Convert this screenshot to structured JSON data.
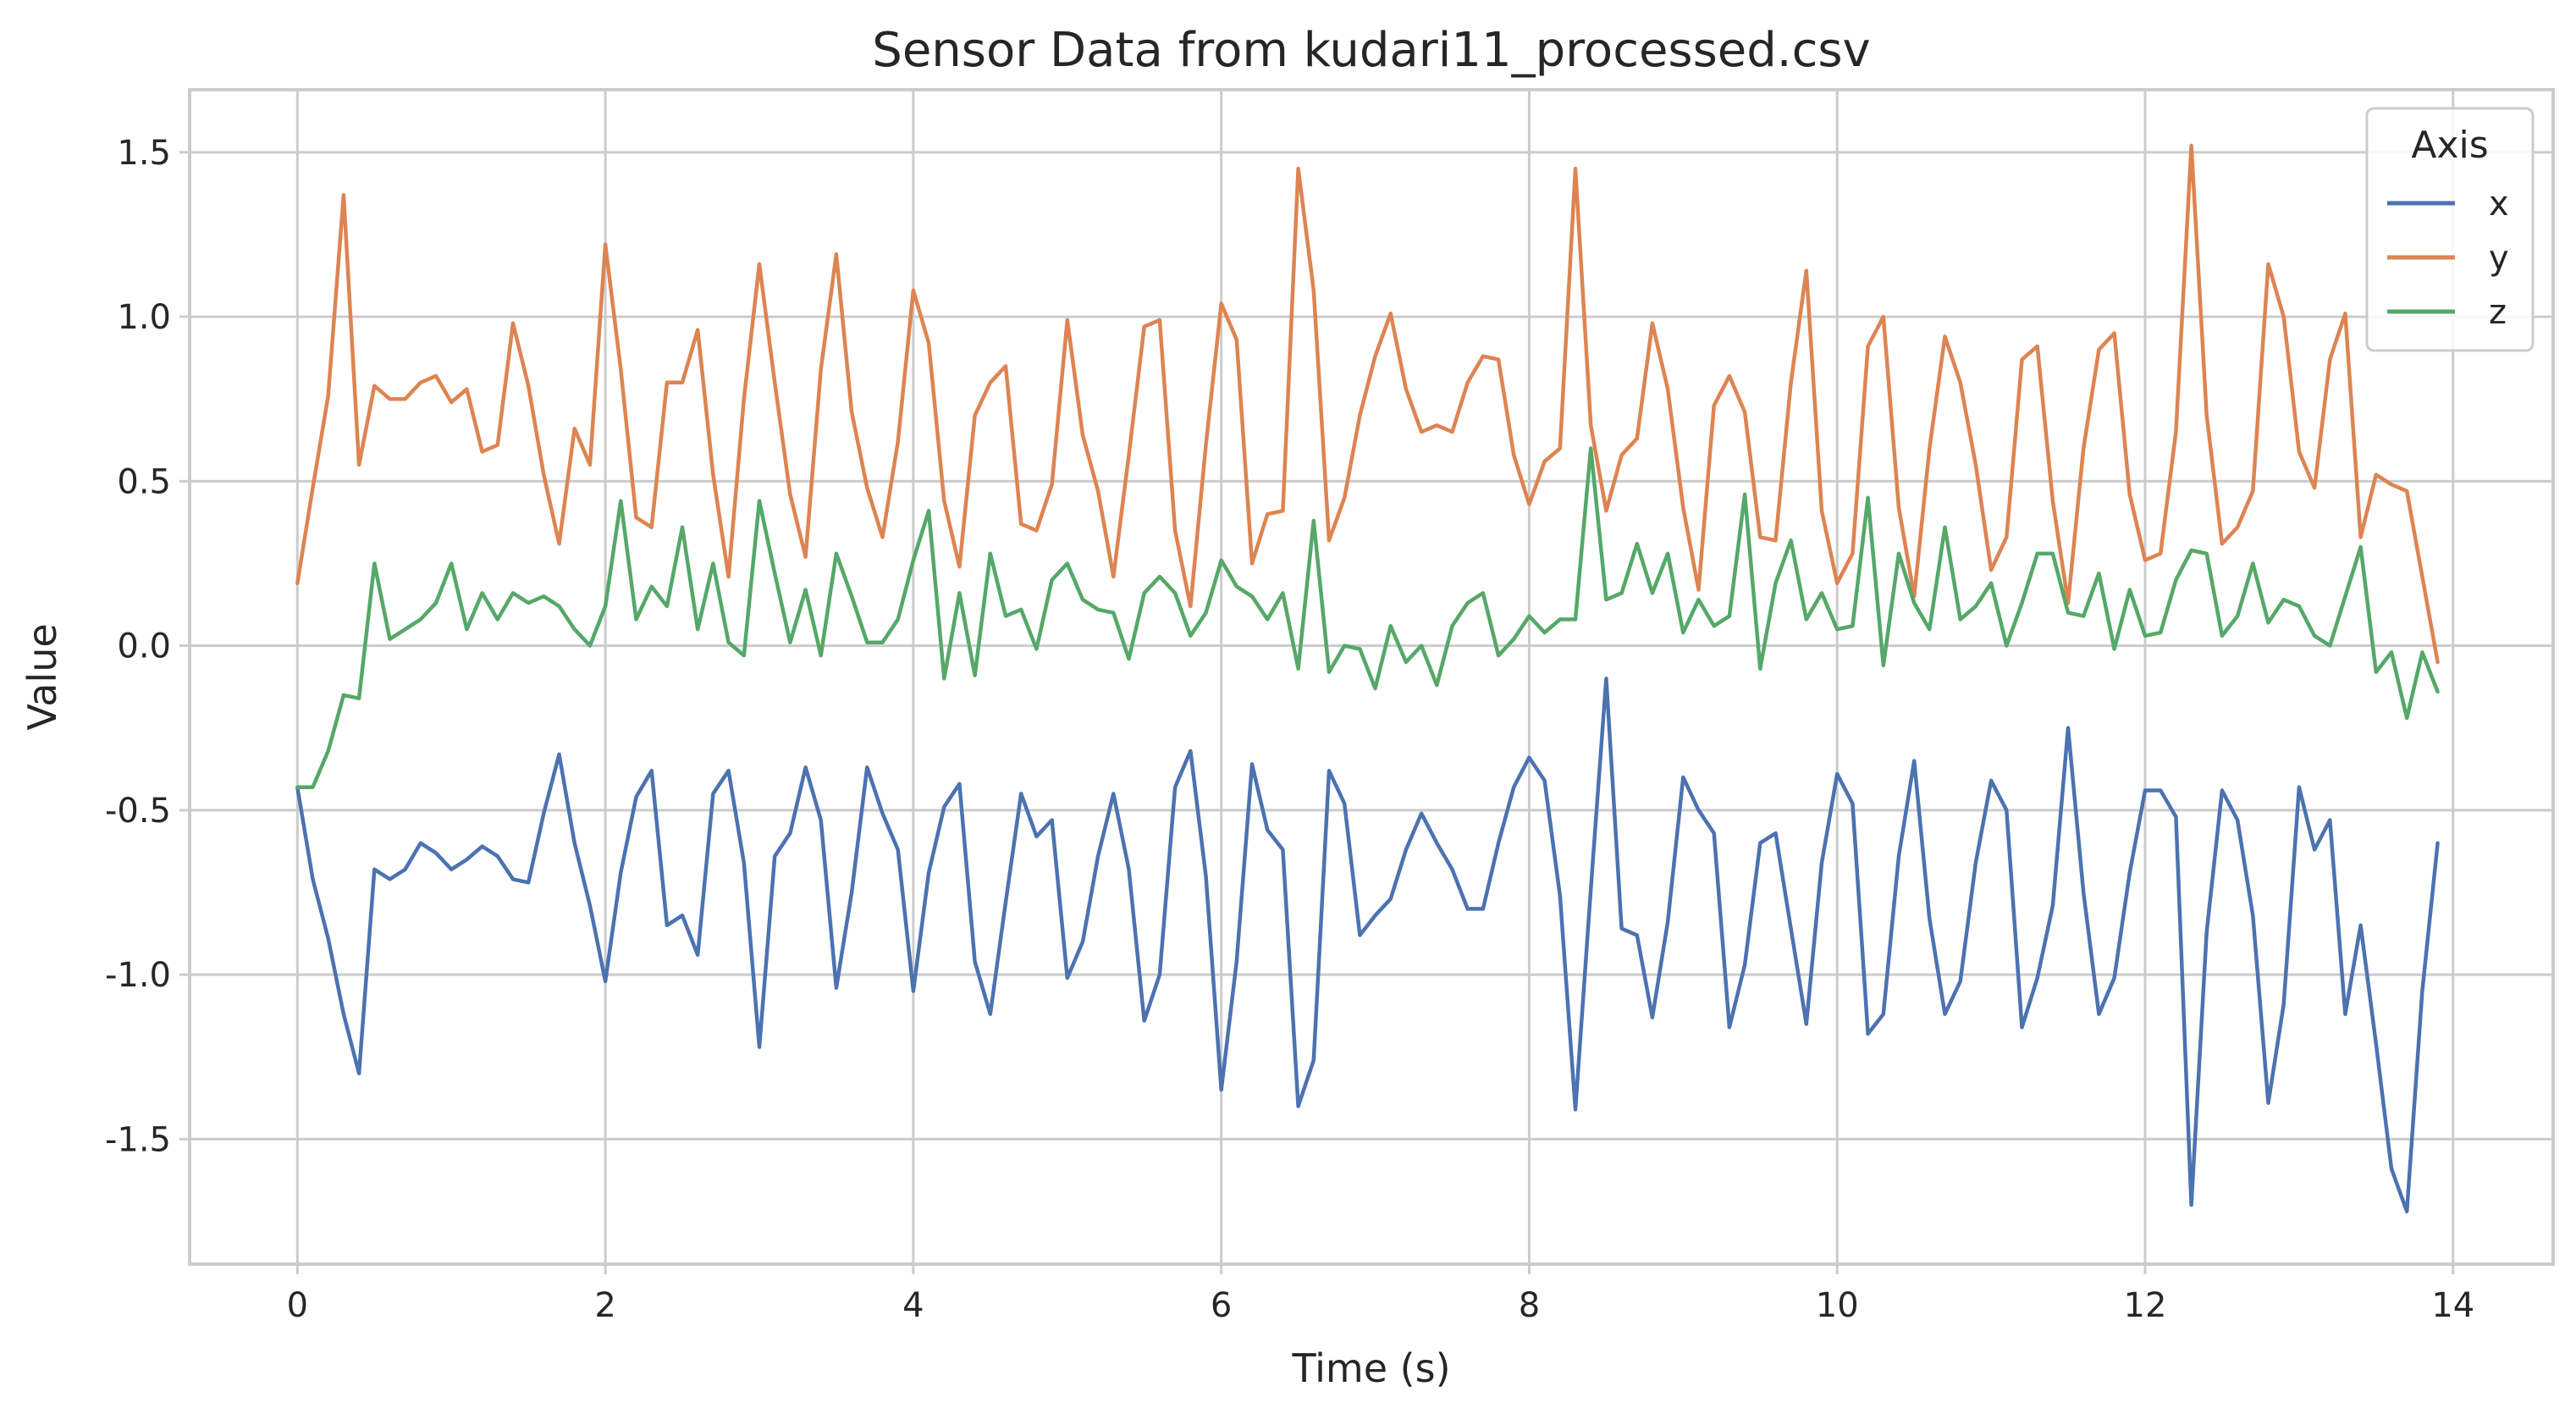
{
  "chart_data": {
    "type": "line",
    "title": "Sensor Data from kudari11_processed.csv",
    "xlabel": "Time (s)",
    "ylabel": "Value",
    "xlim": [
      -0.7,
      14.65
    ],
    "ylim": [
      -1.88,
      1.69
    ],
    "xticks": [
      0,
      2,
      4,
      6,
      8,
      10,
      12,
      14
    ],
    "xtick_labels": [
      "0",
      "2",
      "4",
      "6",
      "8",
      "10",
      "12",
      "14"
    ],
    "yticks": [
      -1.5,
      -1.0,
      -0.5,
      0.0,
      0.5,
      1.0,
      1.5
    ],
    "ytick_labels": [
      "-1.5",
      "-1.0",
      "-0.5",
      "0.0",
      "0.5",
      "1.0",
      "1.5"
    ],
    "grid": true,
    "legend": {
      "title": "Axis",
      "position": "top-right"
    },
    "x": [
      0.0,
      0.1,
      0.2,
      0.3,
      0.4,
      0.5,
      0.6,
      0.7,
      0.8,
      0.9,
      1.0,
      1.1,
      1.2,
      1.3,
      1.4,
      1.5,
      1.6,
      1.7,
      1.8,
      1.9,
      2.0,
      2.1,
      2.2,
      2.3,
      2.4,
      2.5,
      2.6,
      2.7,
      2.8,
      2.9,
      3.0,
      3.1,
      3.2,
      3.3,
      3.4,
      3.5,
      3.6,
      3.7,
      3.8,
      3.9,
      4.0,
      4.1,
      4.2,
      4.3,
      4.4,
      4.5,
      4.6,
      4.7,
      4.8,
      4.9,
      5.0,
      5.1,
      5.2,
      5.3,
      5.4,
      5.5,
      5.6,
      5.7,
      5.8,
      5.9,
      6.0,
      6.1,
      6.2,
      6.3,
      6.4,
      6.5,
      6.6,
      6.7,
      6.8,
      6.9,
      7.0,
      7.1,
      7.2,
      7.3,
      7.4,
      7.5,
      7.6,
      7.7,
      7.8,
      7.9,
      8.0,
      8.1,
      8.2,
      8.3,
      8.4,
      8.5,
      8.6,
      8.7,
      8.8,
      8.9,
      9.0,
      9.1,
      9.2,
      9.3,
      9.4,
      9.5,
      9.6,
      9.7,
      9.8,
      9.9,
      10.0,
      10.1,
      10.2,
      10.3,
      10.4,
      10.5,
      10.6,
      10.7,
      10.8,
      10.9,
      11.0,
      11.1,
      11.2,
      11.3,
      11.4,
      11.5,
      11.6,
      11.7,
      11.8,
      11.9,
      12.0,
      12.1,
      12.2,
      12.3,
      12.4,
      12.5,
      12.6,
      12.7,
      12.8,
      12.9,
      13.0,
      13.1,
      13.2,
      13.3,
      13.4,
      13.5,
      13.6,
      13.7,
      13.8,
      13.9
    ],
    "series": [
      {
        "name": "x",
        "color": "#4c72b0",
        "values": [
          -0.43,
          -0.71,
          -0.89,
          -1.12,
          -1.3,
          -0.68,
          -0.71,
          -0.68,
          -0.6,
          -0.63,
          -0.68,
          -0.65,
          -0.61,
          -0.64,
          -0.71,
          -0.72,
          -0.51,
          -0.33,
          -0.6,
          -0.79,
          -1.02,
          -0.69,
          -0.46,
          -0.38,
          -0.85,
          -0.82,
          -0.94,
          -0.45,
          -0.38,
          -0.66,
          -1.22,
          -0.64,
          -0.57,
          -0.37,
          -0.53,
          -1.04,
          -0.75,
          -0.37,
          -0.51,
          -0.62,
          -1.05,
          -0.69,
          -0.49,
          -0.42,
          -0.96,
          -1.12,
          -0.78,
          -0.45,
          -0.58,
          -0.53,
          -1.01,
          -0.9,
          -0.64,
          -0.45,
          -0.68,
          -1.14,
          -1.0,
          -0.43,
          -0.32,
          -0.7,
          -1.35,
          -0.96,
          -0.36,
          -0.56,
          -0.62,
          -1.4,
          -1.26,
          -0.38,
          -0.48,
          -0.88,
          -0.82,
          -0.77,
          -0.62,
          -0.51,
          -0.6,
          -0.68,
          -0.8,
          -0.8,
          -0.6,
          -0.43,
          -0.34,
          -0.41,
          -0.76,
          -1.41,
          -0.74,
          -0.1,
          -0.86,
          -0.88,
          -1.13,
          -0.84,
          -0.4,
          -0.5,
          -0.57,
          -1.16,
          -0.97,
          -0.6,
          -0.57,
          -0.86,
          -1.15,
          -0.66,
          -0.39,
          -0.48,
          -1.18,
          -1.12,
          -0.64,
          -0.35,
          -0.83,
          -1.12,
          -1.02,
          -0.66,
          -0.41,
          -0.5,
          -1.16,
          -1.01,
          -0.79,
          -0.25,
          -0.75,
          -1.12,
          -1.01,
          -0.69,
          -0.44,
          -0.44,
          -0.52,
          -1.7,
          -0.87,
          -0.44,
          -0.53,
          -0.82,
          -1.39,
          -1.09,
          -0.43,
          -0.62,
          -0.53,
          -1.12,
          -0.85,
          -1.21,
          -1.59,
          -1.72,
          -1.05,
          -0.6
        ]
      },
      {
        "name": "y",
        "color": "#dd8452",
        "values": [
          0.19,
          0.48,
          0.76,
          1.37,
          0.55,
          0.79,
          0.75,
          0.75,
          0.8,
          0.82,
          0.74,
          0.78,
          0.59,
          0.61,
          0.98,
          0.79,
          0.52,
          0.31,
          0.66,
          0.55,
          1.22,
          0.84,
          0.39,
          0.36,
          0.8,
          0.8,
          0.96,
          0.52,
          0.21,
          0.75,
          1.16,
          0.8,
          0.46,
          0.27,
          0.84,
          1.19,
          0.71,
          0.48,
          0.33,
          0.62,
          1.08,
          0.92,
          0.44,
          0.24,
          0.7,
          0.8,
          0.85,
          0.37,
          0.35,
          0.49,
          0.99,
          0.64,
          0.47,
          0.21,
          0.58,
          0.97,
          0.99,
          0.35,
          0.12,
          0.61,
          1.04,
          0.93,
          0.25,
          0.4,
          0.41,
          1.45,
          1.08,
          0.32,
          0.45,
          0.7,
          0.88,
          1.01,
          0.78,
          0.65,
          0.67,
          0.65,
          0.8,
          0.88,
          0.87,
          0.58,
          0.43,
          0.56,
          0.6,
          1.45,
          0.67,
          0.41,
          0.58,
          0.63,
          0.98,
          0.78,
          0.42,
          0.17,
          0.73,
          0.82,
          0.71,
          0.33,
          0.32,
          0.8,
          1.14,
          0.41,
          0.19,
          0.28,
          0.91,
          1.0,
          0.42,
          0.15,
          0.6,
          0.94,
          0.8,
          0.55,
          0.23,
          0.33,
          0.87,
          0.91,
          0.44,
          0.13,
          0.6,
          0.9,
          0.95,
          0.46,
          0.26,
          0.28,
          0.65,
          1.52,
          0.7,
          0.31,
          0.36,
          0.47,
          1.16,
          1.0,
          0.59,
          0.48,
          0.87,
          1.01,
          0.33,
          0.52,
          0.49,
          0.47,
          0.21,
          -0.05
        ]
      },
      {
        "name": "z",
        "color": "#55a868",
        "values": [
          -0.43,
          -0.43,
          -0.32,
          -0.15,
          -0.16,
          0.25,
          0.02,
          0.05,
          0.08,
          0.13,
          0.25,
          0.05,
          0.16,
          0.08,
          0.16,
          0.13,
          0.15,
          0.12,
          0.05,
          0.0,
          0.12,
          0.44,
          0.08,
          0.18,
          0.12,
          0.36,
          0.05,
          0.25,
          0.01,
          -0.03,
          0.44,
          0.22,
          0.01,
          0.17,
          -0.03,
          0.28,
          0.15,
          0.01,
          0.01,
          0.08,
          0.26,
          0.41,
          -0.1,
          0.16,
          -0.09,
          0.28,
          0.09,
          0.11,
          -0.01,
          0.2,
          0.25,
          0.14,
          0.11,
          0.1,
          -0.04,
          0.16,
          0.21,
          0.16,
          0.03,
          0.1,
          0.26,
          0.18,
          0.15,
          0.08,
          0.16,
          -0.07,
          0.38,
          -0.08,
          0.0,
          -0.01,
          -0.13,
          0.06,
          -0.05,
          0.0,
          -0.12,
          0.06,
          0.13,
          0.16,
          -0.03,
          0.02,
          0.09,
          0.04,
          0.08,
          0.08,
          0.6,
          0.14,
          0.16,
          0.31,
          0.16,
          0.28,
          0.04,
          0.14,
          0.06,
          0.09,
          0.46,
          -0.07,
          0.19,
          0.32,
          0.08,
          0.16,
          0.05,
          0.06,
          0.45,
          -0.06,
          0.28,
          0.13,
          0.05,
          0.36,
          0.08,
          0.12,
          0.19,
          0.0,
          0.13,
          0.28,
          0.28,
          0.1,
          0.09,
          0.22,
          -0.01,
          0.17,
          0.03,
          0.04,
          0.2,
          0.29,
          0.28,
          0.03,
          0.09,
          0.25,
          0.07,
          0.14,
          0.12,
          0.03,
          0.0,
          0.15,
          0.3,
          -0.08,
          -0.02,
          -0.22,
          -0.02,
          -0.14
        ]
      }
    ]
  }
}
